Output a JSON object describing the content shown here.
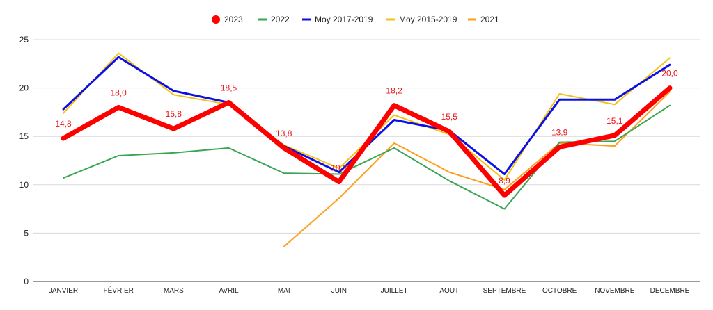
{
  "chart_data": {
    "type": "line",
    "title": "",
    "xlabel": "",
    "ylabel": "",
    "ylim": [
      0,
      25
    ],
    "yticks": [
      "0",
      "5",
      "10",
      "15",
      "20",
      "25"
    ],
    "grid": true,
    "legend_position": "top-center",
    "categories": [
      "JANVIER",
      "FÉVRIER",
      "MARS",
      "AVRIL",
      "MAI",
      "JUIN",
      "JUILLET",
      "AOUT",
      "SEPTEMBRE",
      "OCTOBRE",
      "NOVEMBRE",
      "DECEMBRE"
    ],
    "series": [
      {
        "name": "2023",
        "color": "#ff0000",
        "marker": "dot",
        "values": [
          14.8,
          18.0,
          15.8,
          18.5,
          13.8,
          10.3,
          18.2,
          15.5,
          8.9,
          13.9,
          15.1,
          20.0
        ],
        "labels": [
          "14,8",
          "18,0",
          "15,8",
          "18,5",
          "13,8",
          "10,3",
          "18,2",
          "15,5",
          "8,9",
          "13,9",
          "15,1",
          "20,0"
        ]
      },
      {
        "name": "2022",
        "color": "#3aa655",
        "marker": "line",
        "values": [
          10.7,
          13.0,
          13.3,
          13.8,
          11.2,
          11.1,
          13.8,
          10.4,
          7.5,
          14.4,
          14.5,
          18.2
        ]
      },
      {
        "name": "Moy 2017-2019",
        "color": "#0b10e8",
        "marker": "line",
        "values": [
          17.8,
          23.2,
          19.7,
          18.5,
          14.0,
          11.3,
          16.7,
          15.6,
          11.1,
          18.8,
          18.8,
          22.4
        ]
      },
      {
        "name": "Moy 2015-2019",
        "color": "#f4c20d",
        "marker": "line",
        "values": [
          17.4,
          23.6,
          19.3,
          18.3,
          14.1,
          11.7,
          17.2,
          15.2,
          10.5,
          19.4,
          18.3,
          23.1
        ]
      },
      {
        "name": "2021",
        "color": "#ff9e1b",
        "marker": "line",
        "values": [
          null,
          null,
          null,
          null,
          3.6,
          8.6,
          14.3,
          11.3,
          9.5,
          14.3,
          14.0,
          19.6
        ]
      }
    ]
  }
}
